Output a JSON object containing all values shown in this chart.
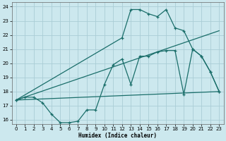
{
  "xlabel": "Humidex (Indice chaleur)",
  "bg_color": "#cce8ee",
  "grid_color": "#aacdd6",
  "line_color": "#1a6e6a",
  "xlim": [
    -0.5,
    23.5
  ],
  "ylim": [
    15.7,
    24.3
  ],
  "yticks": [
    16,
    17,
    18,
    19,
    20,
    21,
    22,
    23,
    24
  ],
  "xticks": [
    0,
    1,
    2,
    3,
    4,
    5,
    6,
    7,
    8,
    9,
    10,
    11,
    12,
    13,
    14,
    15,
    16,
    17,
    18,
    19,
    20,
    21,
    22,
    23
  ],
  "line1_x": [
    0,
    1,
    2,
    3,
    4,
    5,
    6,
    7,
    8,
    9,
    10,
    11,
    12,
    13,
    14,
    15,
    16,
    17,
    18,
    19,
    20,
    21,
    22,
    23
  ],
  "line1_y": [
    17.4,
    17.6,
    17.6,
    17.2,
    16.4,
    15.8,
    15.8,
    15.9,
    16.7,
    16.7,
    18.5,
    19.9,
    20.3,
    18.5,
    20.5,
    20.5,
    20.8,
    20.9,
    20.9,
    17.8,
    21.0,
    20.5,
    19.4,
    18.0
  ],
  "line2_x": [
    0,
    12,
    13,
    14,
    15,
    16,
    17,
    18,
    19,
    20,
    21,
    22,
    23
  ],
  "line2_y": [
    17.4,
    21.8,
    23.8,
    23.8,
    23.5,
    23.3,
    23.8,
    22.5,
    22.3,
    21.0,
    20.5,
    19.4,
    18.0
  ],
  "line3_x": [
    0,
    23
  ],
  "line3_y": [
    17.4,
    18.0
  ],
  "line4_x": [
    0,
    23
  ],
  "line4_y": [
    17.4,
    22.3
  ]
}
